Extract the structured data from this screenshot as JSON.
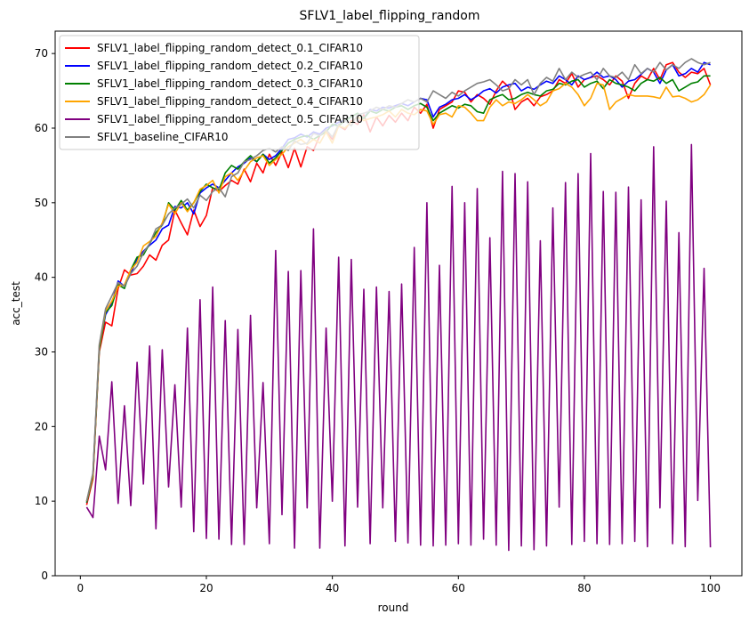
{
  "chart_data": {
    "type": "line",
    "title": "SFLV1_label_flipping_random",
    "xlabel": "round",
    "ylabel": "acc_test",
    "xlim": [
      -4,
      105
    ],
    "ylim": [
      0,
      73
    ],
    "xticks": [
      0,
      20,
      40,
      60,
      80,
      100
    ],
    "yticks": [
      0,
      10,
      20,
      30,
      40,
      50,
      60,
      70
    ],
    "xtick_labels": [
      "0",
      "20",
      "40",
      "60",
      "80",
      "100"
    ],
    "ytick_labels": [
      "0",
      "10",
      "20",
      "30",
      "40",
      "50",
      "60",
      "70"
    ],
    "grid": false,
    "legend_position": "upper-left",
    "x": [
      1,
      2,
      3,
      4,
      5,
      6,
      7,
      8,
      9,
      10,
      11,
      12,
      13,
      14,
      15,
      16,
      17,
      18,
      19,
      20,
      21,
      22,
      23,
      24,
      25,
      26,
      27,
      28,
      29,
      30,
      31,
      32,
      33,
      34,
      35,
      36,
      37,
      38,
      39,
      40,
      41,
      42,
      43,
      44,
      45,
      46,
      47,
      48,
      49,
      50,
      51,
      52,
      53,
      54,
      55,
      56,
      57,
      58,
      59,
      60,
      61,
      62,
      63,
      64,
      65,
      66,
      67,
      68,
      69,
      70,
      71,
      72,
      73,
      74,
      75,
      76,
      77,
      78,
      79,
      80,
      81,
      82,
      83,
      84,
      85,
      86,
      87,
      88,
      89,
      90,
      91,
      92,
      93,
      94,
      95,
      96,
      97,
      98,
      99,
      100
    ],
    "series": [
      {
        "name": "SFLV1_label_flipping_random_detect_0.1_CIFAR10",
        "color": "#ff0000",
        "values": [
          9.5,
          13.0,
          30.0,
          34.0,
          33.5,
          38.5,
          41.0,
          40.3,
          40.5,
          41.5,
          43.0,
          42.3,
          44.3,
          45.0,
          49.0,
          47.3,
          45.7,
          49.0,
          46.8,
          48.3,
          52.0,
          51.5,
          52.3,
          53.0,
          52.5,
          54.5,
          52.8,
          55.3,
          54.0,
          56.5,
          55.0,
          56.8,
          54.7,
          57.3,
          54.8,
          57.5,
          57.0,
          59.0,
          59.5,
          58.5,
          60.3,
          59.8,
          61.0,
          60.5,
          61.8,
          59.5,
          61.5,
          60.3,
          61.7,
          60.8,
          62.0,
          61.0,
          62.8,
          62.0,
          63.2,
          60.0,
          62.5,
          63.0,
          63.5,
          65.0,
          64.8,
          63.5,
          64.5,
          64.0,
          63.2,
          65.0,
          66.3,
          65.5,
          62.5,
          63.5,
          64.0,
          63.0,
          64.2,
          64.5,
          65.0,
          66.5,
          66.0,
          67.3,
          65.5,
          66.5,
          66.8,
          67.0,
          66.5,
          65.8,
          67.0,
          66.3,
          64.0,
          66.0,
          67.0,
          66.5,
          68.0,
          66.5,
          68.5,
          68.8,
          67.5,
          66.8,
          67.5,
          67.3,
          68.0,
          65.8
        ]
      },
      {
        "name": "SFLV1_label_flipping_random_detect_0.2_CIFAR10",
        "color": "#0000ff",
        "values": [
          9.8,
          13.5,
          30.5,
          35.0,
          36.5,
          39.5,
          38.8,
          40.5,
          42.5,
          43.5,
          44.3,
          45.0,
          46.5,
          47.0,
          49.5,
          49.3,
          50.0,
          48.5,
          51.3,
          52.0,
          52.5,
          52.0,
          53.0,
          54.0,
          54.8,
          55.3,
          56.0,
          55.5,
          56.5,
          55.8,
          56.3,
          57.3,
          58.5,
          58.7,
          59.2,
          58.8,
          59.5,
          59.2,
          60.0,
          60.3,
          60.8,
          61.0,
          61.5,
          62.0,
          61.3,
          62.5,
          62.3,
          62.8,
          62.7,
          63.0,
          63.3,
          63.0,
          63.5,
          64.0,
          63.8,
          61.5,
          62.8,
          63.2,
          63.8,
          64.0,
          64.5,
          63.8,
          64.3,
          65.0,
          65.3,
          64.7,
          65.5,
          65.8,
          66.0,
          65.0,
          65.5,
          65.2,
          65.8,
          66.3,
          66.0,
          67.0,
          66.5,
          65.8,
          67.0,
          66.5,
          66.8,
          67.5,
          66.8,
          67.0,
          66.5,
          65.5,
          66.3,
          66.5,
          67.2,
          68.0,
          67.5,
          66.0,
          67.8,
          68.5,
          67.0,
          67.3,
          68.0,
          67.5,
          68.8,
          68.5
        ]
      },
      {
        "name": "SFLV1_label_flipping_random_detect_0.3_CIFAR10",
        "color": "#008000",
        "values": [
          9.8,
          13.3,
          30.3,
          35.3,
          36.2,
          39.0,
          38.5,
          41.0,
          42.7,
          43.0,
          44.5,
          46.0,
          47.0,
          50.0,
          49.0,
          50.3,
          49.0,
          50.0,
          51.5,
          52.5,
          52.0,
          51.7,
          54.0,
          55.0,
          54.5,
          55.5,
          56.3,
          55.5,
          56.5,
          55.3,
          56.0,
          57.0,
          58.0,
          58.5,
          58.8,
          59.0,
          58.5,
          59.0,
          59.5,
          60.5,
          60.3,
          61.0,
          61.5,
          62.0,
          61.3,
          62.3,
          62.0,
          62.5,
          62.3,
          62.8,
          63.0,
          62.5,
          63.0,
          63.3,
          62.8,
          61.0,
          62.0,
          62.5,
          63.0,
          62.7,
          63.2,
          63.0,
          62.2,
          62.0,
          63.8,
          64.2,
          64.5,
          63.8,
          64.0,
          64.5,
          64.8,
          64.5,
          64.3,
          65.0,
          65.2,
          66.0,
          65.8,
          66.3,
          66.5,
          65.5,
          66.0,
          66.3,
          65.3,
          66.5,
          66.0,
          65.8,
          65.5,
          65.0,
          66.0,
          66.5,
          66.3,
          66.8,
          66.0,
          66.5,
          65.0,
          65.5,
          66.0,
          66.2,
          67.0,
          67.0
        ]
      },
      {
        "name": "SFLV1_label_flipping_random_detect_0.4_CIFAR10",
        "color": "#ffa500",
        "values": [
          10.0,
          13.5,
          30.8,
          35.5,
          36.8,
          38.8,
          39.0,
          41.0,
          42.0,
          44.2,
          44.8,
          45.5,
          47.3,
          49.8,
          48.5,
          50.0,
          48.8,
          50.0,
          51.8,
          52.3,
          53.0,
          51.3,
          53.5,
          54.0,
          53.0,
          54.3,
          55.5,
          56.0,
          56.3,
          55.0,
          55.8,
          56.5,
          57.5,
          58.0,
          58.5,
          57.8,
          58.5,
          58.0,
          59.5,
          58.0,
          60.3,
          60.0,
          60.8,
          61.5,
          61.0,
          61.3,
          61.5,
          61.8,
          62.3,
          61.5,
          62.5,
          62.0,
          61.8,
          62.5,
          62.3,
          60.5,
          61.8,
          62.0,
          61.5,
          63.0,
          62.8,
          62.0,
          61.0,
          61.0,
          62.8,
          63.8,
          63.0,
          63.5,
          63.3,
          63.8,
          64.5,
          63.8,
          63.0,
          63.5,
          65.0,
          65.3,
          66.0,
          65.5,
          64.5,
          63.0,
          64.0,
          66.0,
          65.8,
          62.5,
          63.5,
          64.0,
          64.5,
          64.3,
          64.3,
          64.3,
          64.2,
          64.0,
          65.5,
          64.2,
          64.3,
          64.0,
          63.5,
          63.8,
          64.5,
          65.8
        ]
      },
      {
        "name": "SFLV1_label_flipping_random_detect_0.5_CIFAR10",
        "color": "#800080",
        "values": [
          9.2,
          7.8,
          18.7,
          14.2,
          26.0,
          9.7,
          22.8,
          9.4,
          28.6,
          12.3,
          30.8,
          6.3,
          30.3,
          11.9,
          25.6,
          9.2,
          33.2,
          5.9,
          37.0,
          5.0,
          38.7,
          4.9,
          34.2,
          4.2,
          33.0,
          4.2,
          34.9,
          9.1,
          25.9,
          4.3,
          43.6,
          8.2,
          40.8,
          3.7,
          40.9,
          9.1,
          46.5,
          3.7,
          33.2,
          10.0,
          42.7,
          4.0,
          42.4,
          9.2,
          38.4,
          4.3,
          38.7,
          9.1,
          38.1,
          4.6,
          39.1,
          4.4,
          44.0,
          4.1,
          50.0,
          4.0,
          41.6,
          4.1,
          52.2,
          4.3,
          50.0,
          4.1,
          51.9,
          4.9,
          45.3,
          4.1,
          54.2,
          3.4,
          53.9,
          4.0,
          52.8,
          3.5,
          44.9,
          4.0,
          49.3,
          9.2,
          52.7,
          4.2,
          53.9,
          4.6,
          56.6,
          4.3,
          51.5,
          4.2,
          51.4,
          4.3,
          52.1,
          4.6,
          50.4,
          3.9,
          57.5,
          9.1,
          50.2,
          4.3,
          46.0,
          3.9,
          57.8,
          10.1,
          41.2,
          3.8
        ]
      },
      {
        "name": "SFLV1_baseline_CIFAR10",
        "color": "#808080",
        "values": [
          10.0,
          13.8,
          31.0,
          35.8,
          37.5,
          39.3,
          38.8,
          40.5,
          41.5,
          43.3,
          44.5,
          46.5,
          47.0,
          48.5,
          49.3,
          49.8,
          50.5,
          49.3,
          51.0,
          50.3,
          51.5,
          52.0,
          50.8,
          53.5,
          54.0,
          55.5,
          55.8,
          56.3,
          57.0,
          57.3,
          56.8,
          57.5,
          57.0,
          58.3,
          57.8,
          58.0,
          59.3,
          59.0,
          59.8,
          58.8,
          60.5,
          61.0,
          60.3,
          61.8,
          62.0,
          62.3,
          62.8,
          62.5,
          63.0,
          62.8,
          63.3,
          63.8,
          63.5,
          64.0,
          63.5,
          65.0,
          64.5,
          64.0,
          64.8,
          64.3,
          65.0,
          65.5,
          66.0,
          66.2,
          66.5,
          65.8,
          65.0,
          65.3,
          66.5,
          65.8,
          66.5,
          64.5,
          66.0,
          66.8,
          66.3,
          68.0,
          66.5,
          67.5,
          66.8,
          67.2,
          67.5,
          66.5,
          68.0,
          67.0,
          66.8,
          67.5,
          66.5,
          68.5,
          67.3,
          68.0,
          67.5,
          68.8,
          67.8,
          68.5,
          68.0,
          68.8,
          69.3,
          68.8,
          68.5,
          68.8
        ]
      }
    ]
  }
}
